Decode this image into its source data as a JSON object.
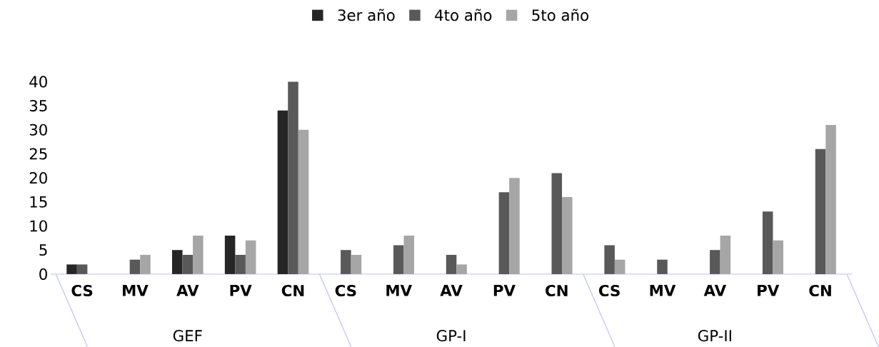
{
  "chart_data": {
    "type": "bar",
    "categories": [
      "CS",
      "MV",
      "AV",
      "PV",
      "CN",
      "CS",
      "MV",
      "AV",
      "PV",
      "CN",
      "CS",
      "MV",
      "AV",
      "PV",
      "CN"
    ],
    "series": [
      {
        "name": "3er año",
        "color": "#262626",
        "values": [
          2,
          0,
          5,
          8,
          34,
          0,
          0,
          0,
          0,
          0,
          0,
          0,
          0,
          0,
          0
        ]
      },
      {
        "name": "4to año",
        "color": "#595959",
        "values": [
          2,
          3,
          4,
          4,
          40,
          5,
          6,
          4,
          17,
          21,
          6,
          3,
          5,
          13,
          26
        ]
      },
      {
        "name": "5to año",
        "color": "#a6a6a6",
        "values": [
          0,
          4,
          8,
          7,
          30,
          4,
          8,
          2,
          20,
          16,
          3,
          0,
          8,
          7,
          31
        ]
      }
    ],
    "annotations": [
      "GEF",
      "GP-I",
      "GP-II"
    ],
    "ylim": [
      0,
      40
    ],
    "yticks": [
      0,
      5,
      10,
      15,
      20,
      25,
      30,
      35,
      40
    ],
    "grid": false,
    "legend": "top"
  }
}
